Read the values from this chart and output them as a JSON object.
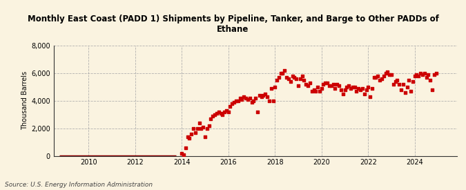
{
  "title": "Monthly East Coast (PADD 1) Shipments by Pipeline, Tanker, and Barge to Other PADDs of\nEthane",
  "ylabel": "Thousand Barrels",
  "source": "Source: U.S. Energy Information Administration",
  "background_color": "#faf3e0",
  "plot_bg_color": "#faf3e0",
  "marker_color": "#cc0000",
  "line_color": "#8b0000",
  "ylim": [
    0,
    8000
  ],
  "yticks": [
    0,
    2000,
    4000,
    6000,
    8000
  ],
  "xlim_start": 2008.5,
  "xlim_end": 2025.8,
  "xticks": [
    2010,
    2012,
    2014,
    2016,
    2018,
    2020,
    2022,
    2024
  ],
  "zero_data": [
    [
      2008.75,
      0
    ],
    [
      2009.0,
      0
    ],
    [
      2009.25,
      0
    ],
    [
      2009.5,
      0
    ],
    [
      2009.75,
      0
    ],
    [
      2010.0,
      0
    ],
    [
      2010.25,
      0
    ],
    [
      2010.5,
      0
    ],
    [
      2010.75,
      0
    ],
    [
      2011.0,
      0
    ],
    [
      2011.25,
      0
    ],
    [
      2011.5,
      0
    ],
    [
      2011.75,
      0
    ],
    [
      2012.0,
      0
    ],
    [
      2012.25,
      0
    ],
    [
      2012.5,
      0
    ],
    [
      2012.75,
      0
    ],
    [
      2013.0,
      0
    ],
    [
      2013.25,
      0
    ],
    [
      2013.5,
      0
    ],
    [
      2013.75,
      0
    ]
  ],
  "data": [
    [
      2014.0,
      200
    ],
    [
      2014.08,
      100
    ],
    [
      2014.17,
      600
    ],
    [
      2014.25,
      1400
    ],
    [
      2014.33,
      1300
    ],
    [
      2014.42,
      1600
    ],
    [
      2014.5,
      2000
    ],
    [
      2014.58,
      1700
    ],
    [
      2014.67,
      2000
    ],
    [
      2014.75,
      2400
    ],
    [
      2014.83,
      2000
    ],
    [
      2014.92,
      2100
    ],
    [
      2015.0,
      1400
    ],
    [
      2015.08,
      2000
    ],
    [
      2015.17,
      2200
    ],
    [
      2015.25,
      2700
    ],
    [
      2015.33,
      2900
    ],
    [
      2015.42,
      3000
    ],
    [
      2015.5,
      3100
    ],
    [
      2015.58,
      3200
    ],
    [
      2015.67,
      3100
    ],
    [
      2015.75,
      3000
    ],
    [
      2015.83,
      3200
    ],
    [
      2015.92,
      3300
    ],
    [
      2016.0,
      3200
    ],
    [
      2016.08,
      3600
    ],
    [
      2016.17,
      3800
    ],
    [
      2016.25,
      3900
    ],
    [
      2016.33,
      4000
    ],
    [
      2016.42,
      4000
    ],
    [
      2016.5,
      4200
    ],
    [
      2016.58,
      4100
    ],
    [
      2016.67,
      4300
    ],
    [
      2016.75,
      4200
    ],
    [
      2016.83,
      4100
    ],
    [
      2016.92,
      4200
    ],
    [
      2017.0,
      3900
    ],
    [
      2017.08,
      4000
    ],
    [
      2017.17,
      4200
    ],
    [
      2017.25,
      3200
    ],
    [
      2017.33,
      4400
    ],
    [
      2017.42,
      4300
    ],
    [
      2017.5,
      4400
    ],
    [
      2017.58,
      4500
    ],
    [
      2017.67,
      4300
    ],
    [
      2017.75,
      4000
    ],
    [
      2017.83,
      4900
    ],
    [
      2017.92,
      4000
    ],
    [
      2018.0,
      5000
    ],
    [
      2018.08,
      5500
    ],
    [
      2018.17,
      5700
    ],
    [
      2018.25,
      6000
    ],
    [
      2018.33,
      6000
    ],
    [
      2018.42,
      6200
    ],
    [
      2018.5,
      5700
    ],
    [
      2018.58,
      5600
    ],
    [
      2018.67,
      5400
    ],
    [
      2018.75,
      5800
    ],
    [
      2018.83,
      5700
    ],
    [
      2018.92,
      5600
    ],
    [
      2019.0,
      5100
    ],
    [
      2019.08,
      5600
    ],
    [
      2019.17,
      5800
    ],
    [
      2019.25,
      5500
    ],
    [
      2019.33,
      5200
    ],
    [
      2019.42,
      5100
    ],
    [
      2019.5,
      5300
    ],
    [
      2019.58,
      4700
    ],
    [
      2019.67,
      4800
    ],
    [
      2019.75,
      4700
    ],
    [
      2019.83,
      5000
    ],
    [
      2019.92,
      4700
    ],
    [
      2020.0,
      4900
    ],
    [
      2020.08,
      5200
    ],
    [
      2020.17,
      5300
    ],
    [
      2020.25,
      5300
    ],
    [
      2020.33,
      5100
    ],
    [
      2020.42,
      5100
    ],
    [
      2020.5,
      5200
    ],
    [
      2020.58,
      4900
    ],
    [
      2020.67,
      5200
    ],
    [
      2020.75,
      5100
    ],
    [
      2020.83,
      4800
    ],
    [
      2020.92,
      4500
    ],
    [
      2021.0,
      4800
    ],
    [
      2021.08,
      5000
    ],
    [
      2021.17,
      5100
    ],
    [
      2021.25,
      4900
    ],
    [
      2021.33,
      5000
    ],
    [
      2021.42,
      5000
    ],
    [
      2021.5,
      4700
    ],
    [
      2021.58,
      4900
    ],
    [
      2021.67,
      4800
    ],
    [
      2021.75,
      4900
    ],
    [
      2021.83,
      4500
    ],
    [
      2021.92,
      4800
    ],
    [
      2022.0,
      5000
    ],
    [
      2022.08,
      4300
    ],
    [
      2022.17,
      4900
    ],
    [
      2022.25,
      5700
    ],
    [
      2022.33,
      5700
    ],
    [
      2022.42,
      5800
    ],
    [
      2022.5,
      5500
    ],
    [
      2022.58,
      5600
    ],
    [
      2022.67,
      5800
    ],
    [
      2022.75,
      6000
    ],
    [
      2022.83,
      6100
    ],
    [
      2022.92,
      5900
    ],
    [
      2023.0,
      5900
    ],
    [
      2023.08,
      5200
    ],
    [
      2023.17,
      5400
    ],
    [
      2023.25,
      5500
    ],
    [
      2023.33,
      5200
    ],
    [
      2023.42,
      4800
    ],
    [
      2023.5,
      5200
    ],
    [
      2023.58,
      4600
    ],
    [
      2023.67,
      5000
    ],
    [
      2023.75,
      5500
    ],
    [
      2023.83,
      4700
    ],
    [
      2023.92,
      5400
    ],
    [
      2024.0,
      5800
    ],
    [
      2024.08,
      5900
    ],
    [
      2024.17,
      5800
    ],
    [
      2024.25,
      6000
    ],
    [
      2024.33,
      5900
    ],
    [
      2024.42,
      6000
    ],
    [
      2024.5,
      5700
    ],
    [
      2024.58,
      5900
    ],
    [
      2024.67,
      5500
    ],
    [
      2024.75,
      4800
    ],
    [
      2024.83,
      5900
    ],
    [
      2024.92,
      6000
    ]
  ]
}
